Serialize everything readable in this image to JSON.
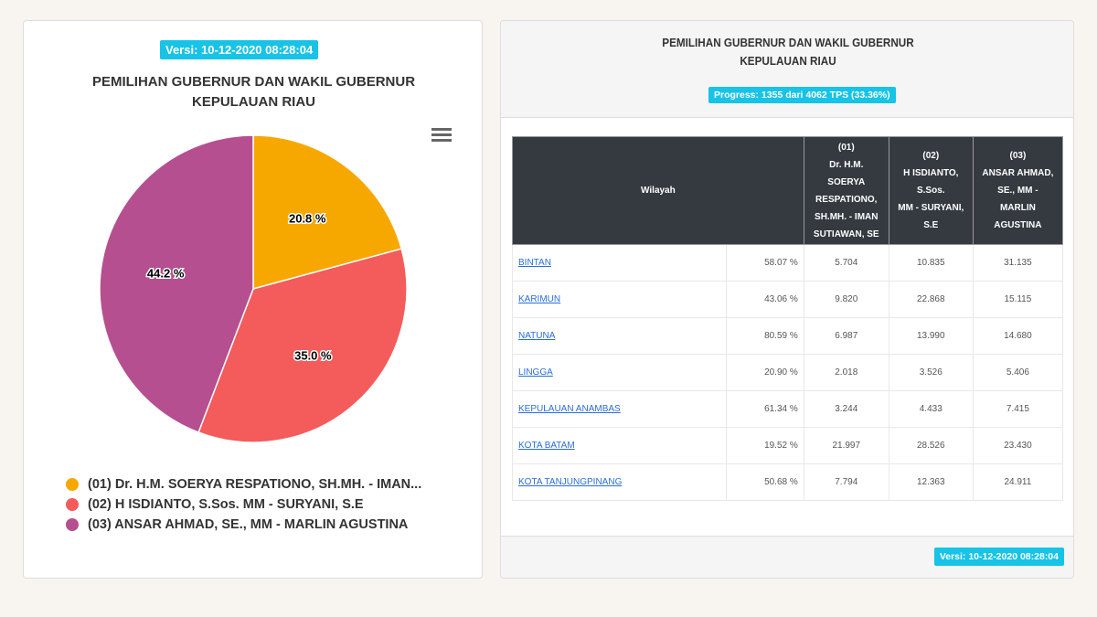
{
  "left": {
    "version": "Versi: 10-12-2020 08:28:04",
    "title_line1": "PEMILIHAN GUBERNUR DAN WAKIL GUBERNUR",
    "title_line2": "KEPULAUAN RIAU",
    "menu_icon": "hamburger-icon"
  },
  "chart_data": {
    "type": "pie",
    "series": [
      {
        "name": "(01) Dr. H.M. SOERYA RESPATIONO, SH.MH. - IMAN...",
        "value": 20.8,
        "label": "20.8 %",
        "color": "#f7a800"
      },
      {
        "name": "(02) H ISDIANTO, S.Sos. MM - SURYANI, S.E",
        "value": 35.0,
        "label": "35.0 %",
        "color": "#f45b5b"
      },
      {
        "name": "(03) ANSAR AHMAD, SE., MM - MARLIN AGUSTINA",
        "value": 44.2,
        "label": "44.2 %",
        "color": "#b54f8f"
      }
    ],
    "legend": "bottom"
  },
  "right": {
    "title_line1": "PEMILIHAN GUBERNUR DAN WAKIL GUBERNUR",
    "title_line2": "KEPULAUAN RIAU",
    "progress": "Progress: 1355 dari 4062 TPS (33.36%)",
    "version": "Versi: 10-12-2020 08:28:04",
    "headers": {
      "wilayah": "Wilayah",
      "c1": [
        "(01)",
        "Dr. H.M. SOERYA",
        "RESPATIONO,",
        "SH.MH. - IMAN",
        "SUTIAWAN, SE"
      ],
      "c2": [
        "(02)",
        "H ISDIANTO, S.Sos.",
        "MM - SURYANI, S.E"
      ],
      "c3": [
        "(03)",
        "ANSAR AHMAD,",
        "SE., MM - MARLIN",
        "AGUSTINA"
      ]
    },
    "rows": [
      [
        "BINTAN",
        "58.07 %",
        "5.704",
        "10.835",
        "31.135"
      ],
      [
        "KARIMUN",
        "43.06 %",
        "9.820",
        "22.868",
        "15.115"
      ],
      [
        "NATUNA",
        "80.59 %",
        "6.987",
        "13.990",
        "14.680"
      ],
      [
        "LINGGA",
        "20.90 %",
        "2.018",
        "3.526",
        "5.406"
      ],
      [
        "KEPULAUAN ANAMBAS",
        "61.34 %",
        "3.244",
        "4.433",
        "7.415"
      ],
      [
        "KOTA BATAM",
        "19.52 %",
        "21.997",
        "28.526",
        "23.430"
      ],
      [
        "KOTA TANJUNGPINANG",
        "50.68 %",
        "7.794",
        "12.363",
        "24.911"
      ]
    ]
  }
}
